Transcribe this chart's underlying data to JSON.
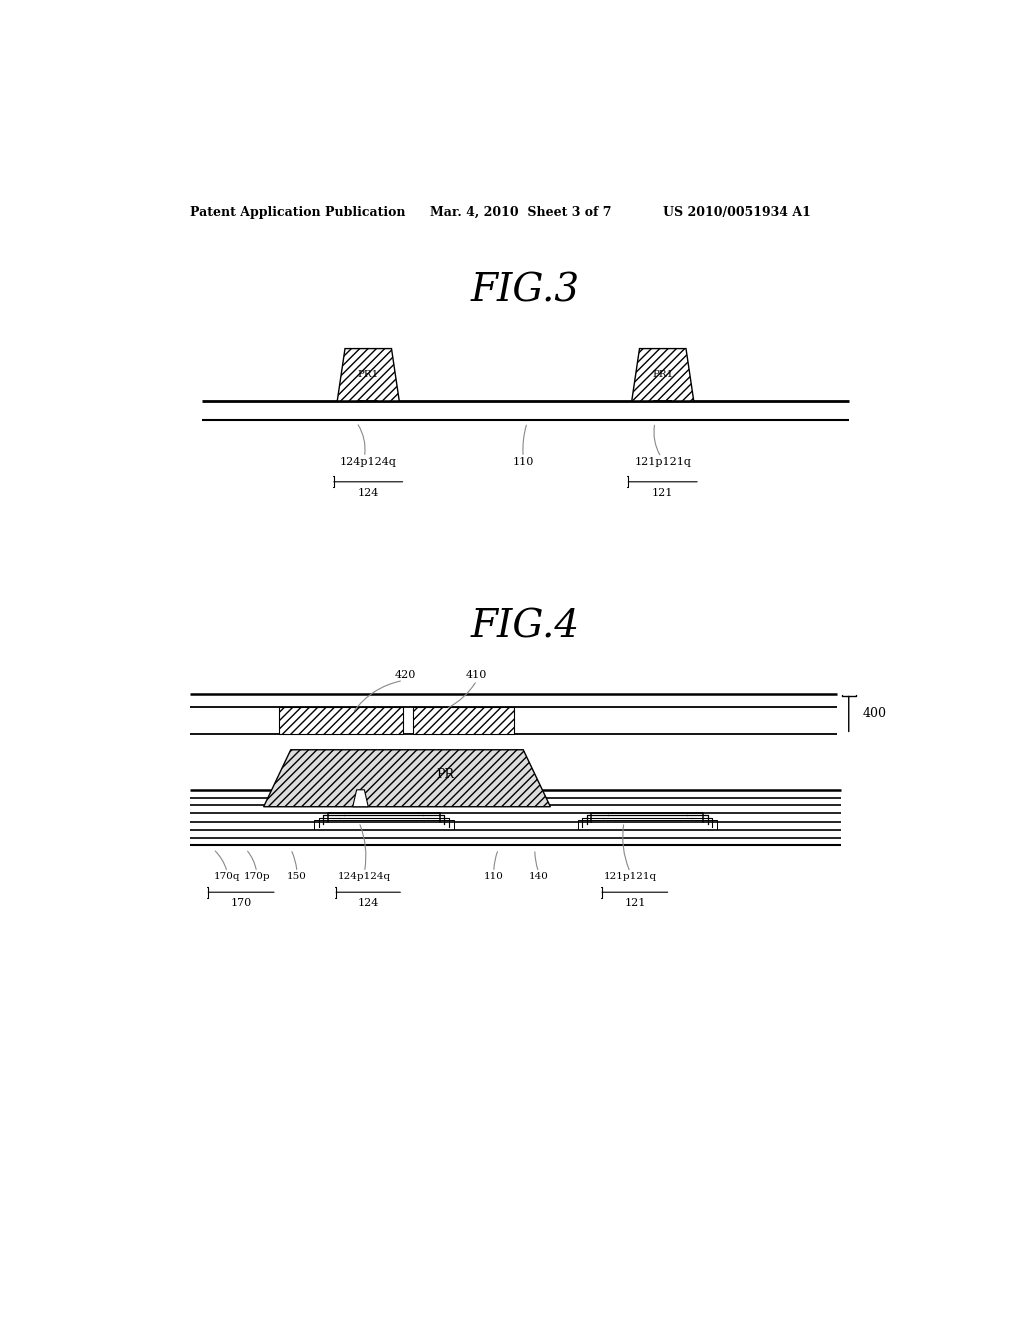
{
  "bg_color": "#ffffff",
  "header_left": "Patent Application Publication",
  "header_mid": "Mar. 4, 2010  Sheet 3 of 7",
  "header_right": "US 2010/0051934 A1",
  "fig3_title": "FIG.3",
  "fig4_title": "FIG.4",
  "fig3_label_110": "110",
  "fig3_label_124pq": "124p124q",
  "fig3_label_124": "124",
  "fig3_label_121pq": "121p121q",
  "fig3_label_121": "121",
  "fig4_label_420": "420",
  "fig4_label_410": "410",
  "fig4_label_400": "400",
  "fig4_label_170q": "170q",
  "fig4_label_170p": "170p",
  "fig4_label_150": "150",
  "fig4_label_124pq": "124p124q",
  "fig4_label_124": "124",
  "fig4_label_110": "110",
  "fig4_label_140": "140",
  "fig4_label_121pq": "121p121q",
  "fig4_label_121": "121",
  "fig4_label_170": "170",
  "fig4_label_PR": "PR"
}
